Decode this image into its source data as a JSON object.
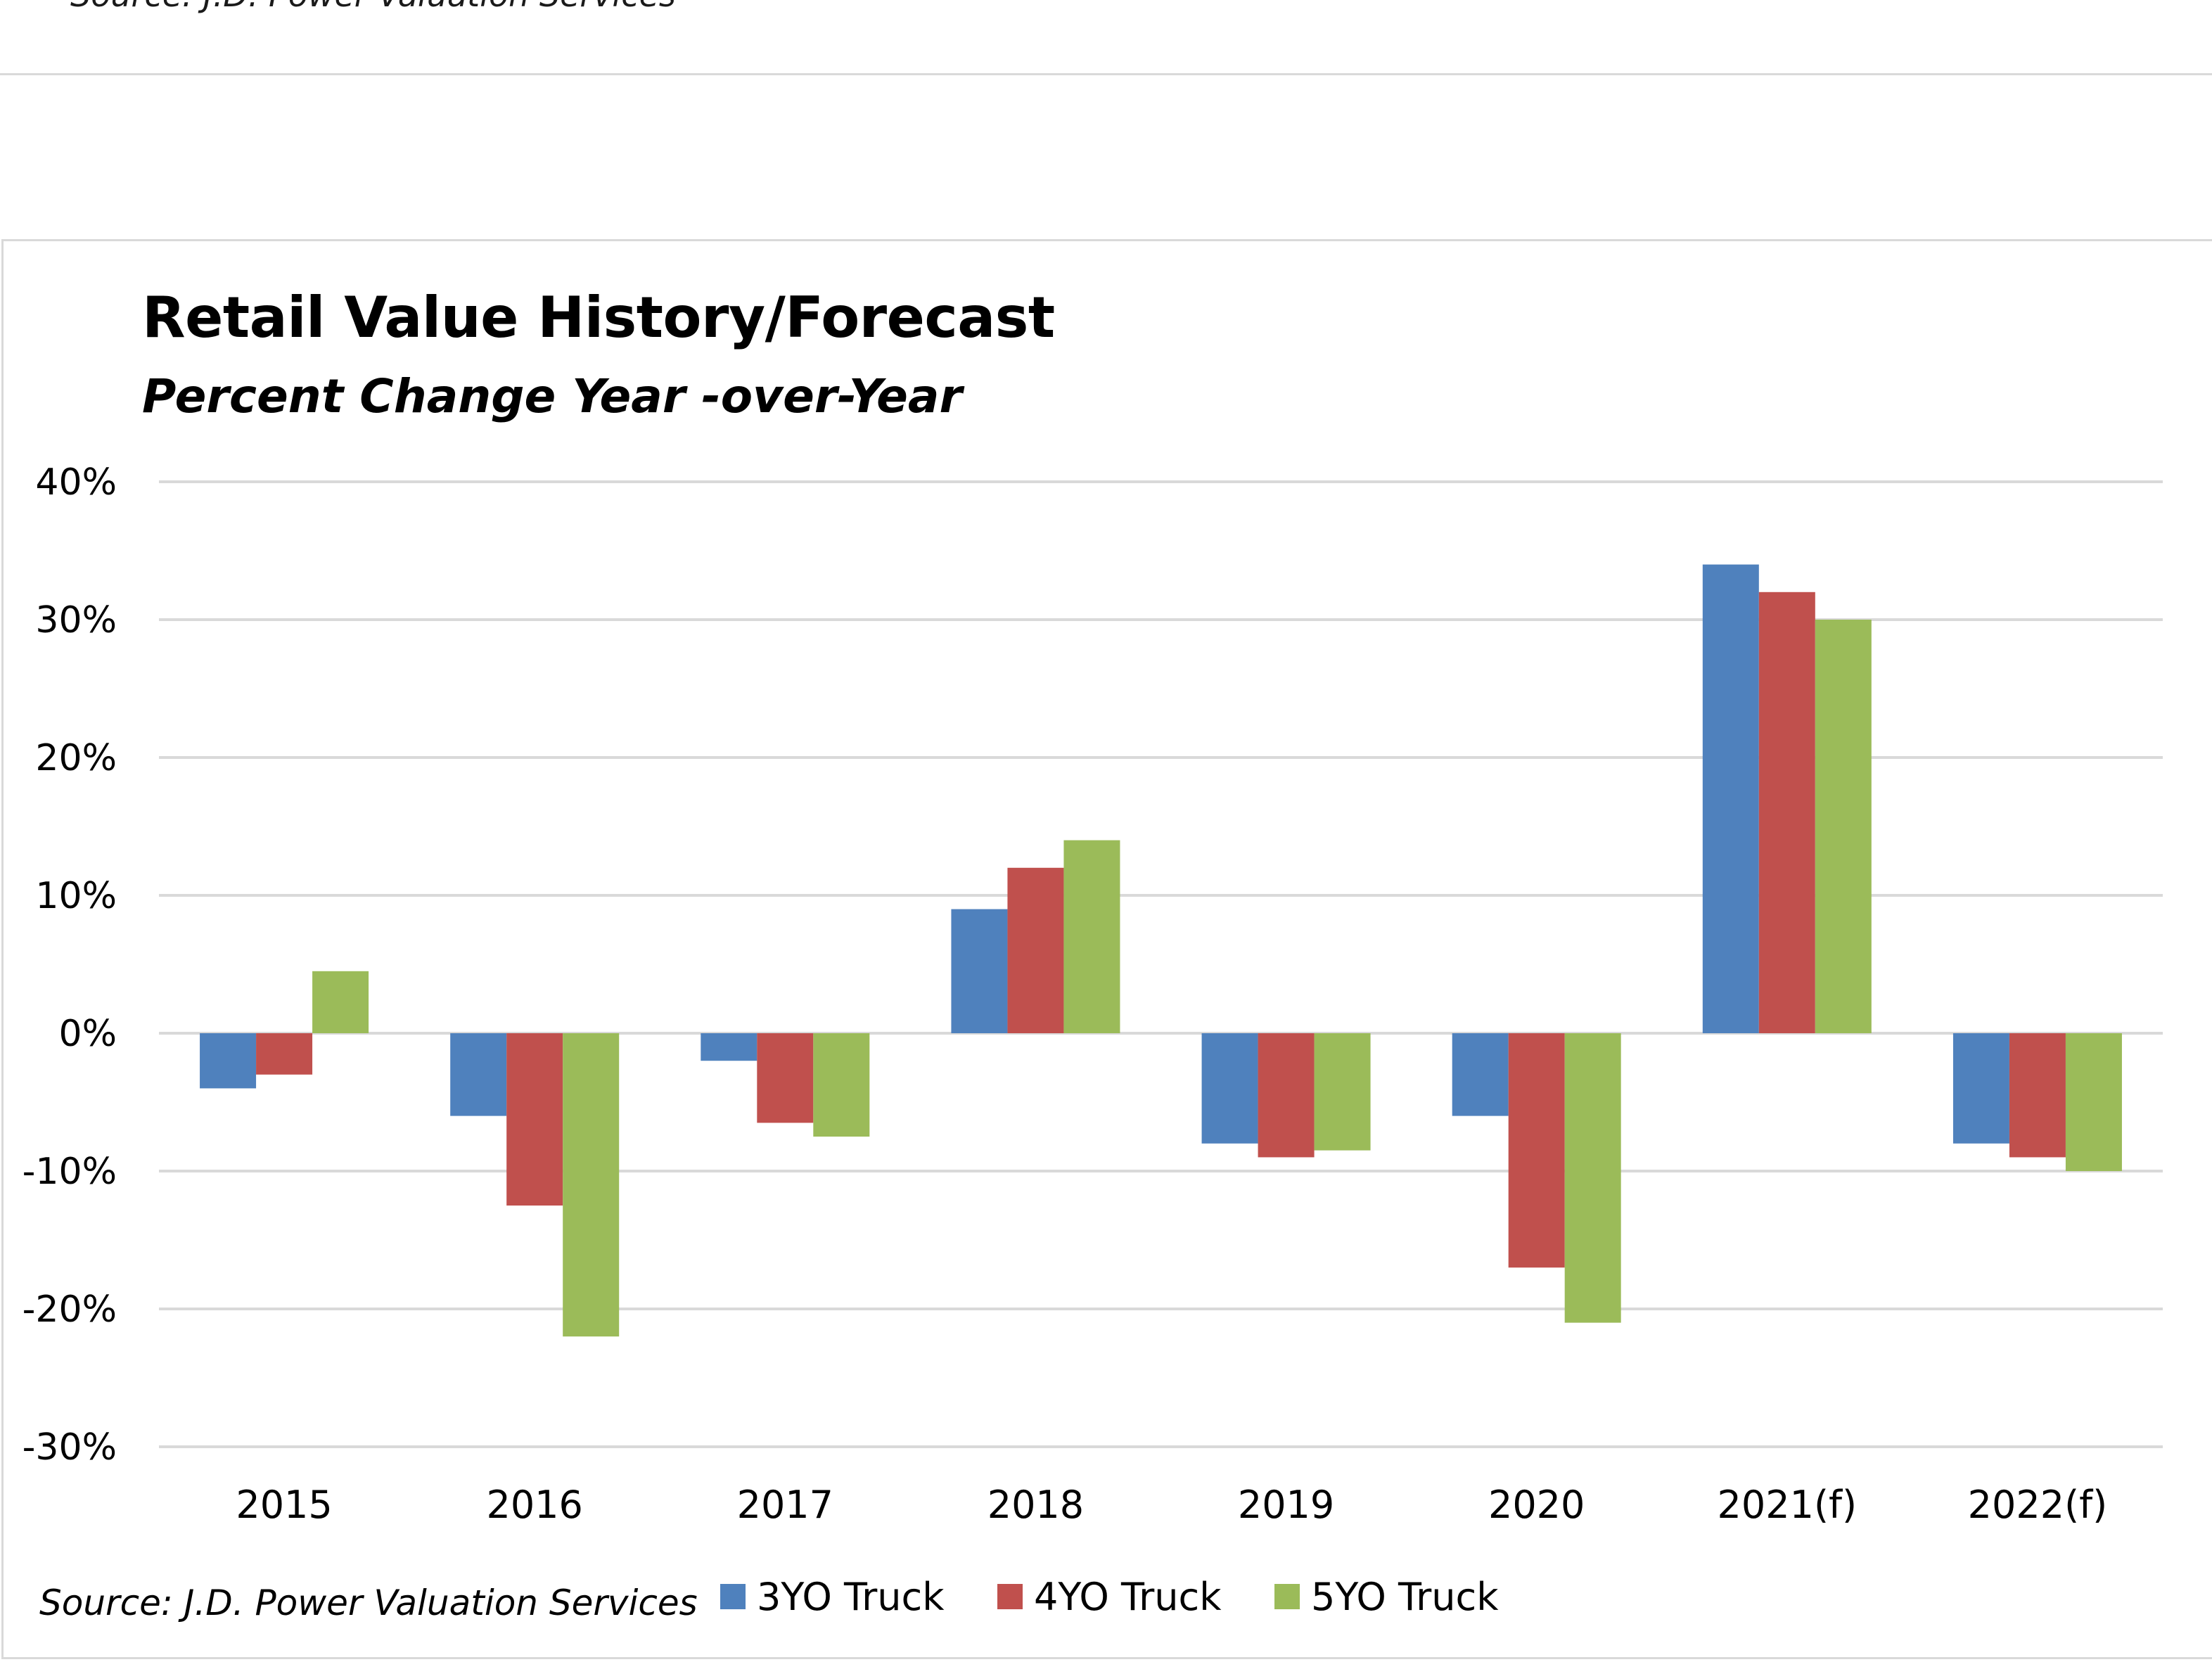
{
  "page": {
    "top_source": "Source: J.D. Power Valuation Services",
    "bottom_source": "Source: J.D. Power Valuation Services"
  },
  "chart_data": {
    "type": "bar",
    "title": "Retail Value History/Forecast",
    "subtitle": "Percent Change Year -over-Year",
    "xlabel": "",
    "ylabel": "",
    "ylim": [
      -0.3,
      0.4
    ],
    "yticks": [
      0.4,
      0.3,
      0.2,
      0.1,
      0.0,
      -0.1,
      -0.2,
      -0.3
    ],
    "ytick_labels": [
      "40%",
      "30%",
      "20%",
      "10%",
      "0%",
      "-10%",
      "-20%",
      "-30%"
    ],
    "grid": true,
    "legend_position": "bottom",
    "categories": [
      "2015",
      "2016",
      "2017",
      "2018",
      "2019",
      "2020",
      "2021(f)",
      "2022(f)"
    ],
    "series": [
      {
        "name": "3YO Truck",
        "color": "#4f81bd",
        "values": [
          -0.04,
          -0.06,
          -0.02,
          0.09,
          -0.08,
          -0.06,
          0.34,
          -0.08
        ]
      },
      {
        "name": "4YO Truck",
        "color": "#c0504d",
        "values": [
          -0.03,
          -0.125,
          -0.065,
          0.12,
          -0.09,
          -0.17,
          0.32,
          -0.09
        ]
      },
      {
        "name": "5YO Truck",
        "color": "#9bbb59",
        "values": [
          0.045,
          -0.22,
          -0.075,
          0.14,
          -0.085,
          -0.21,
          0.3,
          -0.1
        ]
      }
    ]
  }
}
